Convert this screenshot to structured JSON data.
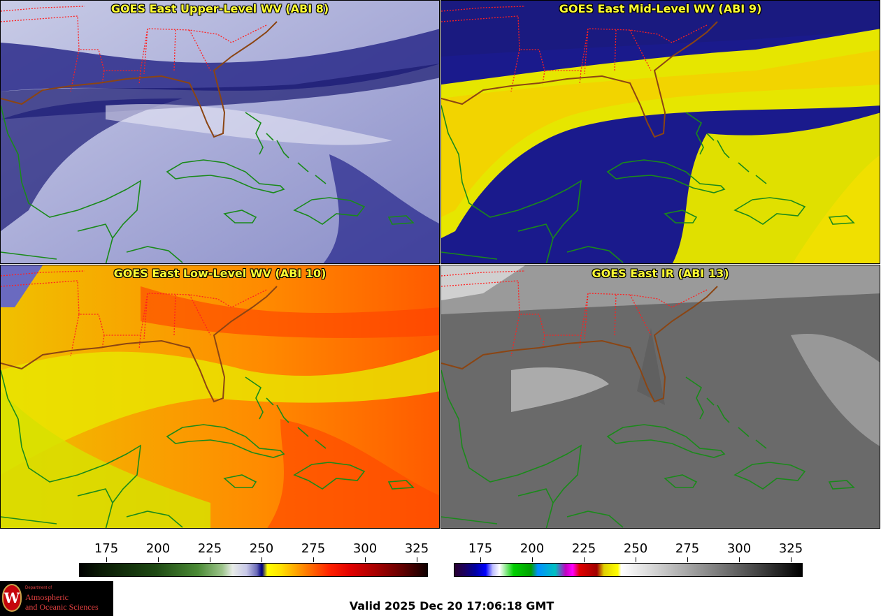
{
  "panels": [
    {
      "title": "GOES East Upper-Level WV (ABI 8)"
    },
    {
      "title": "GOES East Mid-Level WV (ABI 9)"
    },
    {
      "title": "GOES East Low-Level WV (ABI 10)"
    },
    {
      "title": "GOES East IR (ABI 13)"
    }
  ],
  "colorbar_left": {
    "ticks": [
      "175",
      "200",
      "225",
      "250",
      "275",
      "300",
      "325"
    ]
  },
  "colorbar_right": {
    "ticks": [
      "175",
      "200",
      "225",
      "250",
      "275",
      "300",
      "325"
    ]
  },
  "logo": {
    "line1": "Department of",
    "line2": "Atmospheric",
    "line3": "and Oceanic Sciences",
    "seal_letter": "W"
  },
  "valid_time": "Valid 2025 Dec 20 17:06:18 GMT",
  "colors": {
    "title_text": "#ffff33",
    "state_borders": "#ff2020",
    "coastlines": "#1a8a1a"
  }
}
